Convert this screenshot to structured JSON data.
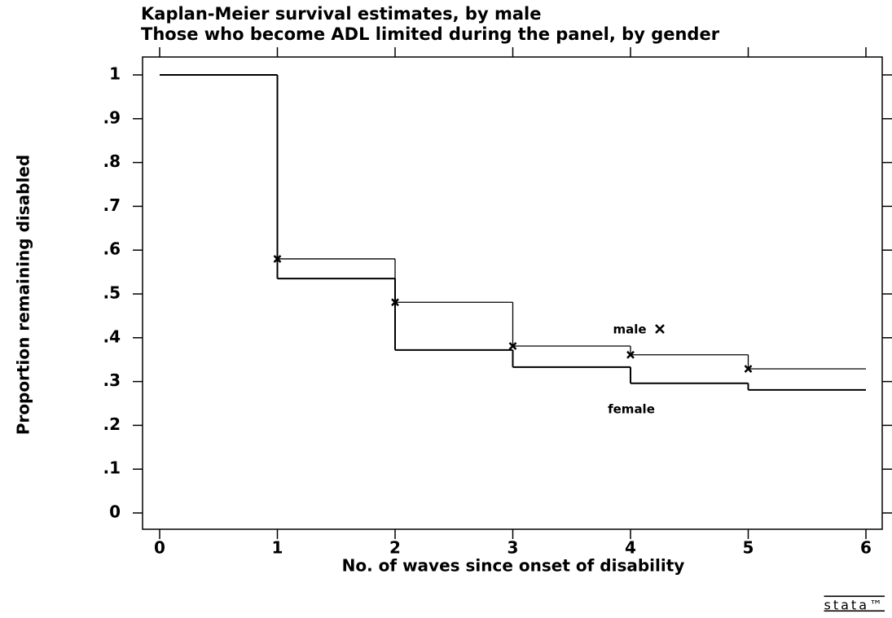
{
  "chart_data": {
    "type": "step",
    "title": [
      "Kaplan-Meier survival estimates, by male",
      "Those who become ADL limited during the panel, by gender"
    ],
    "x_label": "No. of waves since onset of disability",
    "y_label": "Proportion remaining disabled",
    "x": [
      0,
      1,
      2,
      3,
      4,
      5
    ],
    "series": [
      {
        "name": "male",
        "color": "#000000",
        "values": [
          1,
          0.58,
          0.481,
          0.381,
          0.361,
          0.329
        ],
        "marker": "x"
      },
      {
        "name": "female",
        "color": "#000000",
        "values": [
          1,
          0.535,
          0.372,
          0.333,
          0.296,
          0.281
        ]
      }
    ],
    "xlim": [
      0,
      6
    ],
    "xticks": [
      0,
      1,
      2,
      3,
      4,
      5,
      6
    ],
    "ylim": [
      0,
      1
    ],
    "yticks": [
      0,
      {
        "value": 0.1,
        "label": ".1"
      },
      {
        "value": 0.2,
        "label": ".2"
      },
      {
        "value": 0.3,
        "label": ".3"
      },
      {
        "value": 0.4,
        "label": ".4"
      },
      {
        "value": 0.5,
        "label": ".5"
      },
      {
        "value": 0.6,
        "label": ".6"
      },
      {
        "value": 0.7,
        "label": ".7"
      },
      {
        "value": 0.8,
        "label": ".8"
      },
      {
        "value": 0.9,
        "label": ".9"
      },
      1
    ],
    "logo": "stata™"
  }
}
